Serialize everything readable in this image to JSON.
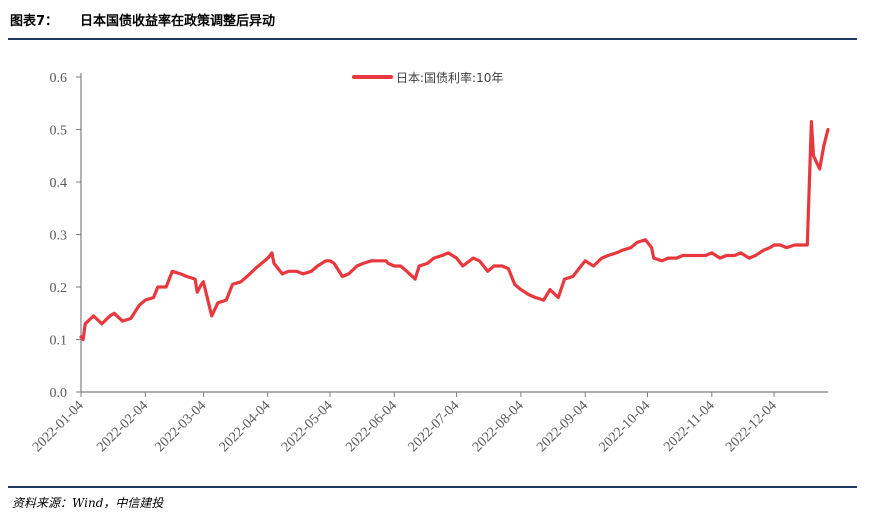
{
  "figure": {
    "number": "图表7：",
    "title": "日本国债收益率在政策调整后异动",
    "source": "资料来源：Wind，中信建投"
  },
  "chart_data": {
    "type": "line",
    "title": "",
    "xlabel": "",
    "ylabel": "",
    "ylim": [
      0,
      0.6
    ],
    "yticks": [
      "0.0",
      "0.1",
      "0.2",
      "0.3",
      "0.4",
      "0.5",
      "0.6"
    ],
    "xticks": [
      "2022-01-04",
      "2022-02-04",
      "2022-03-04",
      "2022-04-04",
      "2022-05-04",
      "2022-06-04",
      "2022-07-04",
      "2022-08-04",
      "2022-09-04",
      "2022-10-04",
      "2022-11-04",
      "2022-12-04"
    ],
    "grid": false,
    "legend": "top-center",
    "line_color": "#e8383d",
    "series": [
      {
        "name": "日本:国债利率:10年",
        "x": [
          "2022-01-04",
          "2022-01-05",
          "2022-01-06",
          "2022-01-10",
          "2022-01-14",
          "2022-01-18",
          "2022-01-20",
          "2022-01-24",
          "2022-01-28",
          "2022-02-01",
          "2022-02-04",
          "2022-02-08",
          "2022-02-10",
          "2022-02-14",
          "2022-02-17",
          "2022-02-21",
          "2022-02-24",
          "2022-02-28",
          "2022-03-01",
          "2022-03-03",
          "2022-03-04",
          "2022-03-08",
          "2022-03-11",
          "2022-03-15",
          "2022-03-18",
          "2022-03-22",
          "2022-03-25",
          "2022-03-29",
          "2022-04-01",
          "2022-04-04",
          "2022-04-06",
          "2022-04-07",
          "2022-04-11",
          "2022-04-14",
          "2022-04-18",
          "2022-04-21",
          "2022-04-25",
          "2022-04-28",
          "2022-05-02",
          "2022-05-04",
          "2022-05-06",
          "2022-05-10",
          "2022-05-13",
          "2022-05-17",
          "2022-05-20",
          "2022-05-24",
          "2022-05-27",
          "2022-05-31",
          "2022-06-01",
          "2022-06-04",
          "2022-06-07",
          "2022-06-10",
          "2022-06-14",
          "2022-06-16",
          "2022-06-20",
          "2022-06-23",
          "2022-06-27",
          "2022-06-30",
          "2022-07-04",
          "2022-07-07",
          "2022-07-12",
          "2022-07-15",
          "2022-07-19",
          "2022-07-22",
          "2022-07-26",
          "2022-07-29",
          "2022-08-01",
          "2022-08-04",
          "2022-08-08",
          "2022-08-11",
          "2022-08-15",
          "2022-08-18",
          "2022-08-22",
          "2022-08-25",
          "2022-08-29",
          "2022-09-01",
          "2022-09-04",
          "2022-09-08",
          "2022-09-12",
          "2022-09-15",
          "2022-09-19",
          "2022-09-22",
          "2022-09-26",
          "2022-09-29",
          "2022-10-03",
          "2022-10-06",
          "2022-10-07",
          "2022-10-11",
          "2022-10-14",
          "2022-10-18",
          "2022-10-21",
          "2022-10-25",
          "2022-10-28",
          "2022-11-01",
          "2022-11-04",
          "2022-11-08",
          "2022-11-11",
          "2022-11-15",
          "2022-11-18",
          "2022-11-22",
          "2022-11-25",
          "2022-11-29",
          "2022-12-02",
          "2022-12-04",
          "2022-12-07",
          "2022-12-10",
          "2022-12-14",
          "2022-12-16",
          "2022-12-19",
          "2022-12-20",
          "2022-12-22",
          "2022-12-23",
          "2022-12-26",
          "2022-12-28",
          "2022-12-30"
        ],
        "y": [
          0.105,
          0.1,
          0.13,
          0.145,
          0.13,
          0.145,
          0.15,
          0.135,
          0.14,
          0.165,
          0.175,
          0.18,
          0.2,
          0.2,
          0.23,
          0.225,
          0.22,
          0.215,
          0.19,
          0.205,
          0.21,
          0.145,
          0.17,
          0.175,
          0.205,
          0.21,
          0.22,
          0.235,
          0.245,
          0.255,
          0.265,
          0.245,
          0.225,
          0.23,
          0.23,
          0.225,
          0.23,
          0.24,
          0.25,
          0.25,
          0.245,
          0.22,
          0.225,
          0.24,
          0.245,
          0.25,
          0.25,
          0.25,
          0.245,
          0.24,
          0.24,
          0.23,
          0.215,
          0.24,
          0.245,
          0.255,
          0.26,
          0.265,
          0.255,
          0.24,
          0.255,
          0.25,
          0.23,
          0.24,
          0.24,
          0.235,
          0.205,
          0.195,
          0.185,
          0.18,
          0.175,
          0.195,
          0.18,
          0.215,
          0.22,
          0.235,
          0.25,
          0.24,
          0.255,
          0.26,
          0.265,
          0.27,
          0.275,
          0.285,
          0.29,
          0.275,
          0.255,
          0.25,
          0.255,
          0.255,
          0.26,
          0.26,
          0.26,
          0.26,
          0.265,
          0.255,
          0.26,
          0.26,
          0.265,
          0.255,
          0.26,
          0.27,
          0.275,
          0.28,
          0.28,
          0.275,
          0.28,
          0.28,
          0.28,
          0.28,
          0.515,
          0.45,
          0.425,
          0.47,
          0.5
        ]
      }
    ]
  }
}
